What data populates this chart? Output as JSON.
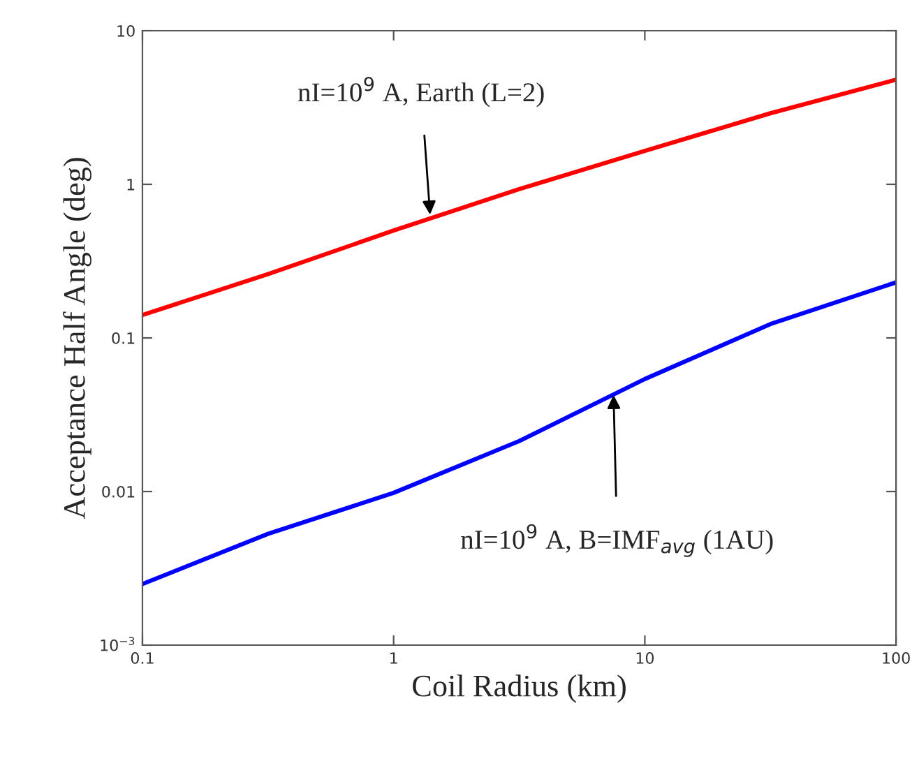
{
  "chart_data": {
    "type": "line",
    "xlabel": "Coil Radius (km)",
    "ylabel": "Acceptance Half Angle (deg)",
    "x": [
      0.1,
      0.316,
      1,
      3.16,
      10,
      31.6,
      100
    ],
    "series": [
      {
        "color": "#ff0000",
        "values": [
          0.141,
          0.26,
          0.5,
          0.93,
          1.65,
          2.9,
          4.8
        ]
      },
      {
        "color": "#0000ff",
        "values": [
          0.0025,
          0.0053,
          0.0098,
          0.0213,
          0.054,
          0.123,
          0.23
        ]
      }
    ],
    "annotations": [
      {
        "text": "nI=10$^{9}$ A, Earth (L=2)",
        "x": 1.4,
        "y": 0.6
      },
      {
        "text": "nI=10$^{9}$ A, B=IMF$_{avg}$ (1AU)",
        "x": 7.5,
        "y": 0.045
      }
    ],
    "log": "xy",
    "xlim": [
      0.1,
      100
    ],
    "xticks": [
      0.1,
      1,
      10,
      100
    ],
    "ylim": [
      0.001,
      10
    ],
    "yticks": [
      {
        "value": 0.001,
        "label": "10$^{−3}$"
      },
      0.01,
      0.1,
      1,
      10
    ],
    "grid": false,
    "legend": false,
    "marker": "none",
    "line_style": "solid"
  }
}
